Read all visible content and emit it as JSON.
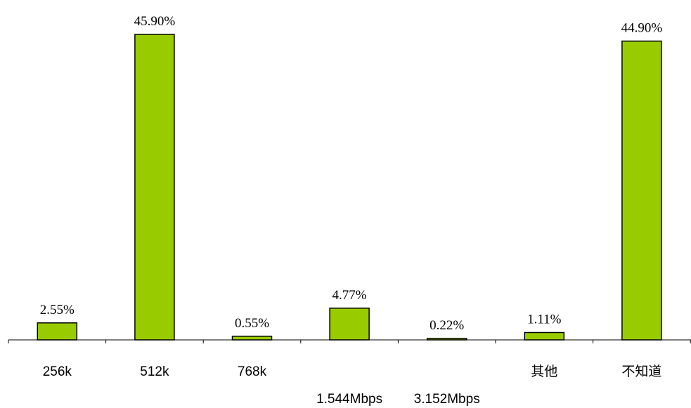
{
  "chart_data": {
    "type": "bar",
    "categories": [
      "256k",
      "512k",
      "768k",
      "1.544Mbps",
      "3.152Mbps",
      "其他",
      "不知道"
    ],
    "values": [
      2.55,
      45.9,
      0.55,
      4.77,
      0.22,
      1.11,
      44.9
    ],
    "value_labels": [
      "2.55%",
      "45.90%",
      "0.55%",
      "4.77%",
      "0.22%",
      "1.11%",
      "44.90%"
    ],
    "title": "",
    "xlabel": "",
    "ylabel": "",
    "ylim": [
      0,
      45.9
    ],
    "grid": false,
    "legend": "none",
    "bar_color": "#99cc00",
    "edge_color": "#000000"
  }
}
